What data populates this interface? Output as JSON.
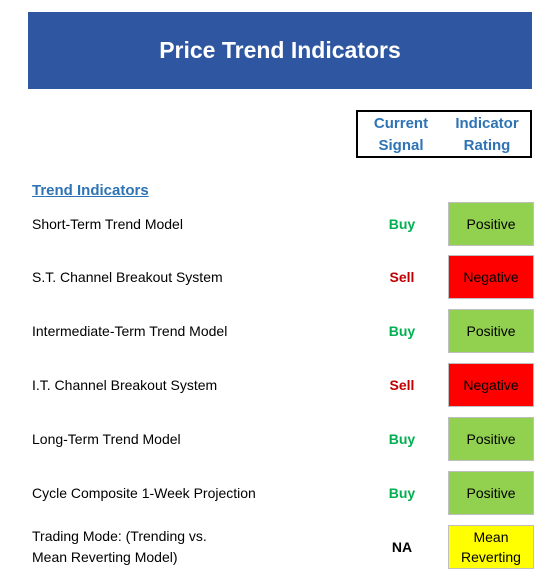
{
  "title": "Price Trend Indicators",
  "header": {
    "current_signal": "Current\nSignal",
    "indicator_rating": "Indicator\nRating"
  },
  "section": "Trend Indicators",
  "colors": {
    "banner": "#2f56a0",
    "buy": "#00b050",
    "sell": "#c00000",
    "na": "#000000",
    "positive": "#92d050",
    "negative": "#ff0000",
    "neutral": "#ffff00"
  },
  "rows": [
    {
      "label": "Short-Term Trend Model",
      "signal": "Buy",
      "signal_type": "buy",
      "rating": "Positive",
      "rating_type": "positive"
    },
    {
      "label": "S.T. Channel Breakout System",
      "signal": "Sell",
      "signal_type": "sell",
      "rating": "Negative",
      "rating_type": "negative"
    },
    {
      "label": "Intermediate-Term Trend Model",
      "signal": "Buy",
      "signal_type": "buy",
      "rating": "Positive",
      "rating_type": "positive"
    },
    {
      "label": "I.T. Channel Breakout System",
      "signal": "Sell",
      "signal_type": "sell",
      "rating": "Negative",
      "rating_type": "negative"
    },
    {
      "label": "Long-Term Trend Model",
      "signal": "Buy",
      "signal_type": "buy",
      "rating": "Positive",
      "rating_type": "positive"
    },
    {
      "label": "Cycle Composite 1-Week Projection",
      "signal": "Buy",
      "signal_type": "buy",
      "rating": "Positive",
      "rating_type": "positive"
    },
    {
      "label": "Trading Mode: (Trending vs.\nMean Reverting Model)",
      "signal": "NA",
      "signal_type": "na",
      "rating": "Mean\nReverting",
      "rating_type": "neutral"
    }
  ]
}
